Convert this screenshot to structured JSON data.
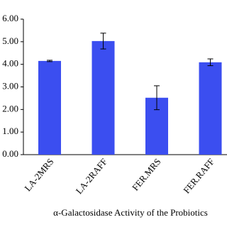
{
  "chart_data": {
    "type": "bar",
    "x_label": "α-Galactosidase Activity of the Probiotics",
    "categories": [
      "LA-2MRS",
      "LA-2RAFF",
      "FER.MRS",
      "FER.RAFF"
    ],
    "values": [
      4.15,
      5.03,
      2.52,
      4.09
    ],
    "errors": [
      0.03,
      0.35,
      0.53,
      0.15
    ],
    "color": "#3b4ef0",
    "ylim": [
      0,
      6
    ],
    "yticks": [
      {
        "value": 0,
        "label": "0.00"
      },
      {
        "value": 1,
        "label": "1.00"
      },
      {
        "value": 2,
        "label": "2.00"
      },
      {
        "value": 3,
        "label": "3.00"
      },
      {
        "value": 4,
        "label": "4.00"
      },
      {
        "value": 5,
        "label": "5.00"
      },
      {
        "value": 6,
        "label": "6.00"
      }
    ]
  }
}
